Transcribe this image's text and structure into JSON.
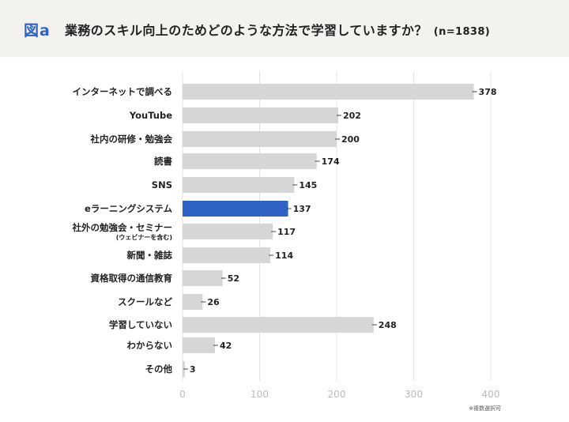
{
  "header": {
    "figure_label": "図a",
    "title": "業務のスキル向上のためどのような方法で学習していますか？",
    "sample": "(n=1838)"
  },
  "footnote": "※複数選択可",
  "colors": {
    "bar_default": "#d6d6d6",
    "bar_highlight": "#2f62c4",
    "grid": "#e3e3e3",
    "header_bg": "#f3f2ef"
  },
  "chart_data": {
    "type": "bar",
    "orientation": "horizontal",
    "title": "業務のスキル向上のためどのような方法で学習していますか？",
    "xlabel": "",
    "ylabel": "",
    "xlim": [
      0,
      400
    ],
    "xticks": [
      0,
      100,
      200,
      300,
      400
    ],
    "grid": true,
    "highlight_index": 5,
    "categories": [
      {
        "label": "インターネットで調べる",
        "sub": ""
      },
      {
        "label": "YouTube",
        "sub": ""
      },
      {
        "label": "社内の研修・勉強会",
        "sub": ""
      },
      {
        "label": "読書",
        "sub": ""
      },
      {
        "label": "SNS",
        "sub": ""
      },
      {
        "label": "eラーニングシステム",
        "sub": ""
      },
      {
        "label": "社外の勉強会・セミナー",
        "sub": "(ウェビナーを含む)"
      },
      {
        "label": "新聞・雑誌",
        "sub": ""
      },
      {
        "label": "資格取得の通信教育",
        "sub": ""
      },
      {
        "label": "スクールなど",
        "sub": ""
      },
      {
        "label": "学習していない",
        "sub": ""
      },
      {
        "label": "わからない",
        "sub": ""
      },
      {
        "label": "その他",
        "sub": ""
      }
    ],
    "values": [
      378,
      202,
      200,
      174,
      145,
      137,
      117,
      114,
      52,
      26,
      248,
      42,
      3
    ]
  }
}
